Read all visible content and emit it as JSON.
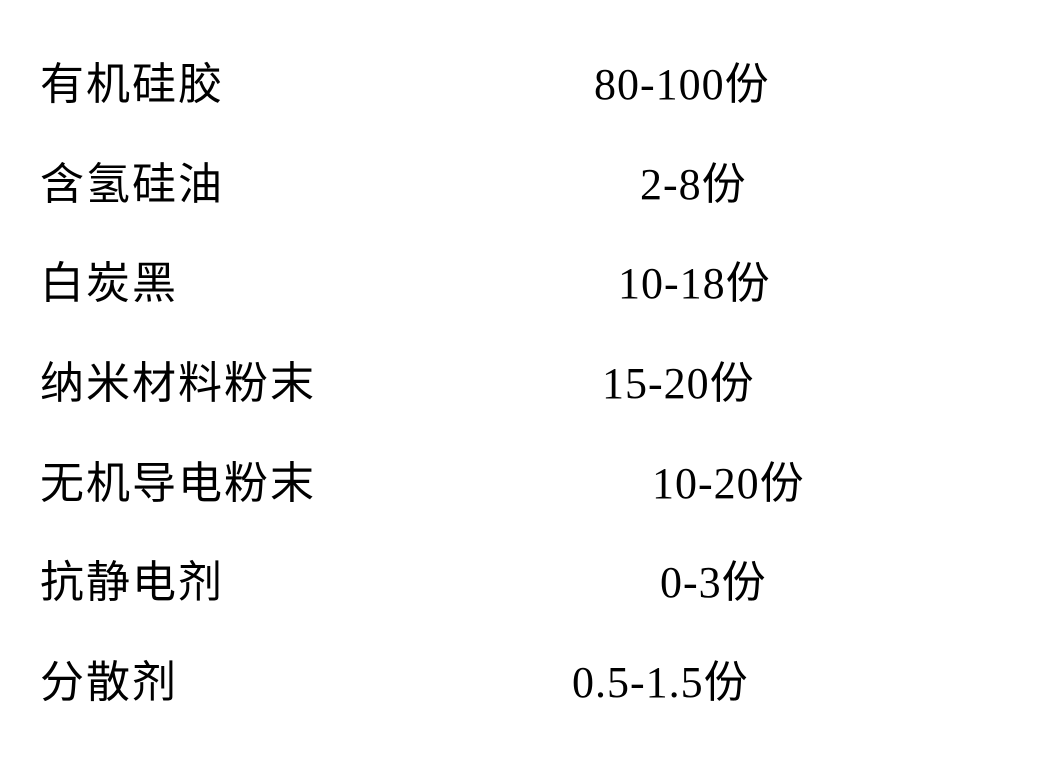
{
  "ingredients": [
    {
      "name": "有机硅胶",
      "quantity": "80-100份"
    },
    {
      "name": "含氢硅油",
      "quantity": "2-8份"
    },
    {
      "name": "白炭黑",
      "quantity": "10-18份"
    },
    {
      "name": "纳米材料粉末",
      "quantity": "15-20份"
    },
    {
      "name": "无机导电粉末",
      "quantity": "10-20份"
    },
    {
      "name": "抗静电剂",
      "quantity": "0-3份"
    },
    {
      "name": "分散剂",
      "quantity": "0.5-1.5份"
    }
  ],
  "styling": {
    "type": "table",
    "background_color": "#ffffff",
    "text_color": "#000000",
    "font_family": "SimSun",
    "font_size": 44,
    "columns": [
      "name",
      "quantity"
    ],
    "column_alignment": [
      "left",
      "left"
    ],
    "row_count": 7,
    "letter_spacing_label": 2,
    "letter_spacing_value": 1
  }
}
